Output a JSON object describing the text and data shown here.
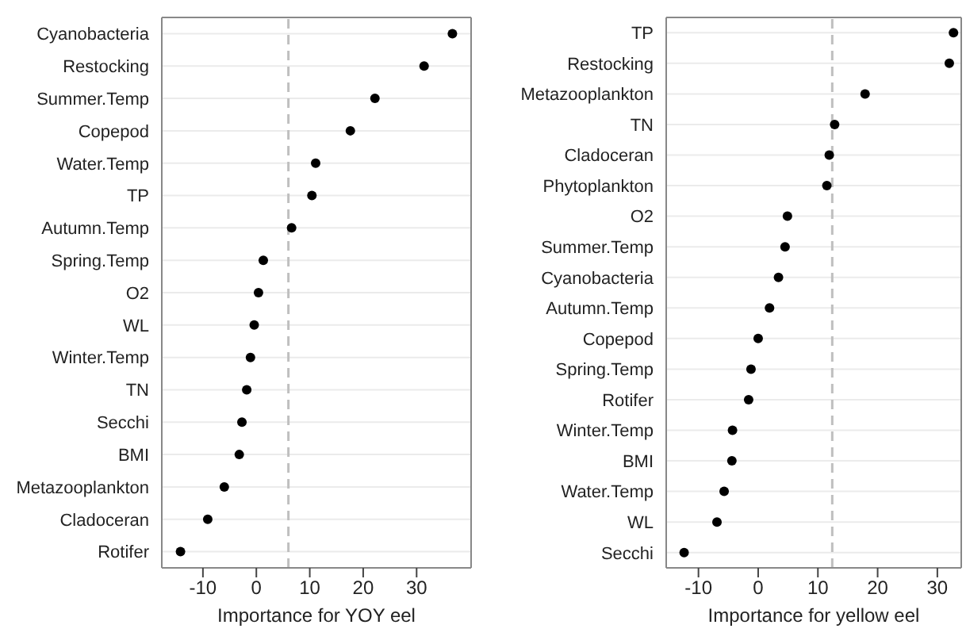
{
  "chart_data": [
    {
      "type": "scatter",
      "orientation": "horizontal",
      "xlabel": "Importance for YOY eel",
      "categories": [
        "Cyanobacteria",
        "Restocking",
        "Summer.Temp",
        "Copepod",
        "Water.Temp",
        "TP",
        "Autumn.Temp",
        "Spring.Temp",
        "O2",
        "WL",
        "Winter.Temp",
        "TN",
        "Secchi",
        "BMI",
        "Metazooplankton",
        "Cladoceran",
        "Rotifer"
      ],
      "values": [
        36.7,
        31.4,
        22.2,
        17.6,
        11.1,
        10.4,
        6.6,
        1.3,
        0.4,
        -0.4,
        -1.1,
        -1.8,
        -2.7,
        -3.2,
        -6.0,
        -9.1,
        -14.2
      ],
      "color": "#000000",
      "marker": "circle",
      "grid": "y",
      "xlim": [
        -17.7,
        40.2
      ],
      "xticks": [
        -10,
        0,
        10,
        20,
        30
      ],
      "ref_lines": [
        {
          "axis": "x",
          "value": 6.0,
          "color": "#bfbfbf",
          "line_style": "dashed"
        }
      ]
    },
    {
      "type": "scatter",
      "orientation": "horizontal",
      "xlabel": "Importance for yellow eel",
      "categories": [
        "TP",
        "Restocking",
        "Metazooplankton",
        "TN",
        "Cladoceran",
        "Phytoplankton",
        "O2",
        "Summer.Temp",
        "Cyanobacteria",
        "Autumn.Temp",
        "Copepod",
        "Spring.Temp",
        "Rotifer",
        "Winter.Temp",
        "BMI",
        "Water.Temp",
        "WL",
        "Secchi"
      ],
      "values": [
        32.7,
        32.0,
        17.9,
        12.8,
        11.9,
        11.5,
        4.9,
        4.5,
        3.4,
        1.9,
        0.0,
        -1.2,
        -1.6,
        -4.3,
        -4.4,
        -5.7,
        -6.9,
        -12.4
      ],
      "color": "#000000",
      "marker": "circle",
      "grid": "y",
      "xlim": [
        -15.4,
        34.0
      ],
      "xticks": [
        -10,
        0,
        10,
        20,
        30
      ],
      "ref_lines": [
        {
          "axis": "x",
          "value": 12.4,
          "color": "#bfbfbf",
          "line_style": "dashed"
        }
      ]
    }
  ]
}
